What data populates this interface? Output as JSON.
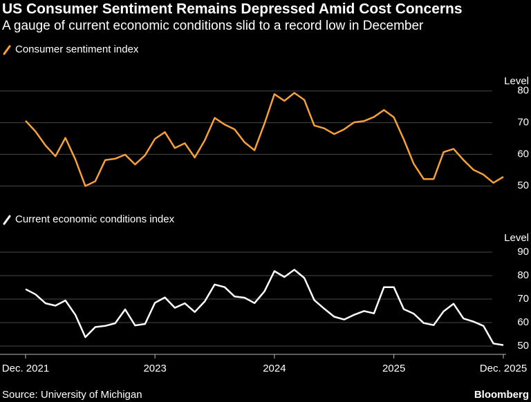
{
  "header": {
    "title": "US Consumer Sentiment Remains Depressed Amid Cost Concerns",
    "subtitle": "A gauge of current economic conditions slid to a record low in December"
  },
  "chart_data": [
    {
      "type": "line",
      "y_label": "Level",
      "ylim": [
        47,
        83
      ],
      "yticks": [
        50,
        60,
        70,
        80
      ],
      "grid": true,
      "series": [
        {
          "name": "Consumer sentiment index",
          "color": "#f7a13a",
          "values": [
            70.6,
            67.2,
            62.8,
            59.4,
            65.2,
            58.4,
            50.0,
            51.5,
            58.2,
            58.6,
            59.9,
            56.8,
            59.7,
            64.9,
            67.0,
            62.0,
            63.5,
            59.0,
            64.4,
            71.5,
            69.4,
            67.9,
            63.8,
            61.3,
            69.7,
            79.0,
            76.9,
            79.4,
            77.2,
            69.1,
            68.2,
            66.4,
            67.9,
            70.1,
            70.5,
            71.8,
            74.0,
            71.7,
            64.7,
            57.0,
            52.2,
            52.2,
            60.7,
            61.7,
            58.2,
            55.1,
            53.6,
            51.0,
            52.9
          ]
        }
      ]
    },
    {
      "type": "line",
      "y_label": "Level",
      "ylim": [
        47,
        93
      ],
      "yticks": [
        50,
        60,
        70,
        80,
        90
      ],
      "grid": true,
      "categories": [
        "Dec. 2021",
        null,
        null,
        null,
        null,
        null,
        null,
        null,
        null,
        null,
        null,
        null,
        null,
        "2023",
        null,
        null,
        null,
        null,
        null,
        null,
        null,
        null,
        null,
        null,
        null,
        "2024",
        null,
        null,
        null,
        null,
        null,
        null,
        null,
        null,
        null,
        null,
        null,
        "2025",
        null,
        null,
        null,
        null,
        null,
        null,
        null,
        null,
        null,
        null,
        "Dec. 2025"
      ],
      "series": [
        {
          "name": "Current economic conditions index",
          "color": "#ffffff",
          "values": [
            74.2,
            72.0,
            68.2,
            67.2,
            69.4,
            63.3,
            53.8,
            58.1,
            58.6,
            59.7,
            65.6,
            58.8,
            59.4,
            68.4,
            70.7,
            66.3,
            68.2,
            64.5,
            69.0,
            76.2,
            75.1,
            71.1,
            70.6,
            68.3,
            73.3,
            81.9,
            79.4,
            82.5,
            79.0,
            69.6,
            65.9,
            62.5,
            61.3,
            63.3,
            64.9,
            63.9,
            75.1,
            75.1,
            65.7,
            63.8,
            59.8,
            58.9,
            64.8,
            68.0,
            61.7,
            60.4,
            58.6,
            51.1,
            50.4
          ]
        }
      ]
    }
  ],
  "footer": {
    "source": "Source: University of Michigan",
    "brand": "Bloomberg"
  }
}
